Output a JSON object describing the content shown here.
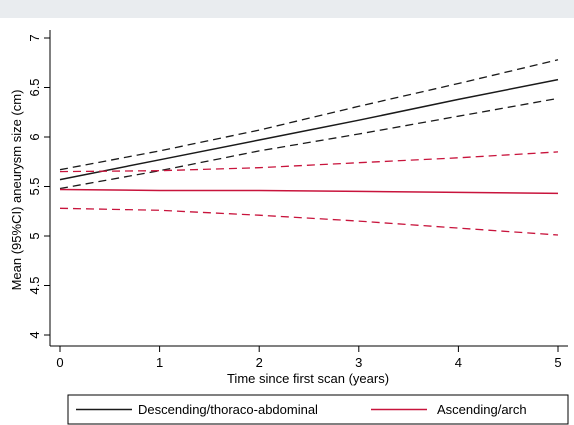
{
  "chart_data": {
    "type": "line",
    "xlabel": "Time since first scan (years)",
    "ylabel": "Mean (95%CI) aneurysm size (cm)",
    "xlim": [
      0,
      5
    ],
    "ylim": [
      3.95,
      7.05
    ],
    "x_ticks": [
      0,
      1,
      2,
      3,
      4,
      5
    ],
    "y_ticks": [
      4,
      4.5,
      5,
      5.5,
      6,
      6.5,
      7
    ],
    "x_tick_labels": [
      "0",
      "1",
      "2",
      "3",
      "4",
      "5"
    ],
    "y_tick_labels": [
      "4",
      "4.5",
      "5",
      "5.5",
      "6",
      "6.5",
      "7"
    ],
    "grid": false,
    "legend_position": "bottom",
    "series": [
      {
        "name": "Descending/thoraco-abdominal",
        "color": "#1a1a1a",
        "x": [
          0,
          1,
          2,
          3,
          4,
          5
        ],
        "mean": [
          5.57,
          5.77,
          5.97,
          6.17,
          6.38,
          6.58
        ],
        "ci_upper": [
          5.67,
          5.86,
          6.07,
          6.31,
          6.54,
          6.78
        ],
        "ci_lower": [
          5.48,
          5.66,
          5.86,
          6.03,
          6.21,
          6.39
        ]
      },
      {
        "name": "Ascending/arch",
        "color": "#c8143c",
        "x": [
          0,
          1,
          2,
          3,
          4,
          5
        ],
        "mean": [
          5.47,
          5.46,
          5.46,
          5.45,
          5.44,
          5.43
        ],
        "ci_upper": [
          5.65,
          5.66,
          5.69,
          5.74,
          5.79,
          5.85
        ],
        "ci_lower": [
          5.28,
          5.26,
          5.21,
          5.15,
          5.08,
          5.01
        ]
      }
    ]
  }
}
